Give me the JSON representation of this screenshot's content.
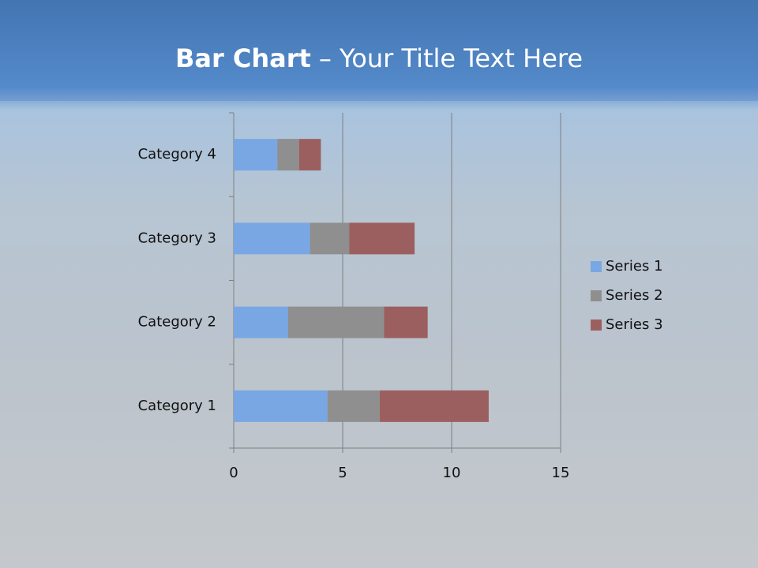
{
  "chart_data": {
    "type": "stacked-bar-horizontal",
    "title_lead": "Bar Chart",
    "title": "– Your Title Text Here",
    "categories": [
      "Category 1",
      "Category 2",
      "Category 3",
      "Category 4"
    ],
    "series": [
      {
        "name": "Series 1",
        "color": "#79a7e3",
        "values": [
          4.3,
          2.5,
          3.5,
          2.0
        ]
      },
      {
        "name": "Series 2",
        "color": "#8f8f8f",
        "values": [
          2.4,
          4.4,
          1.8,
          1.0
        ]
      },
      {
        "name": "Series 3",
        "color": "#9c5f5f",
        "values": [
          5.0,
          2.0,
          3.0,
          1.0
        ]
      }
    ],
    "xlim": [
      0,
      15
    ],
    "xticks": [
      0,
      5,
      10,
      15
    ],
    "grid": true,
    "legend": "right"
  }
}
